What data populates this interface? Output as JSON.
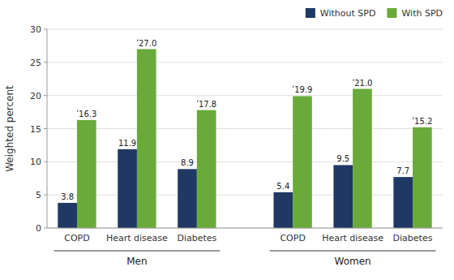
{
  "chart_data": {
    "type": "bar",
    "categories": [
      "COPD",
      "Heart disease",
      "Diabetes",
      "COPD",
      "Heart disease",
      "Diabetes"
    ],
    "group_labels": [
      "Men",
      "Women"
    ],
    "series": [
      {
        "name": "Without SPD",
        "color": "#1f3864",
        "values": [
          3.8,
          11.9,
          8.9,
          5.4,
          9.5,
          7.7
        ]
      },
      {
        "name": "With SPD",
        "color": "#6aaa3a",
        "values": [
          16.3,
          27.0,
          17.8,
          19.9,
          21.0,
          15.2
        ],
        "value_labels": [
          "ʹ16.3",
          "ʹ27.0",
          "ʹ17.8",
          "ʹ19.9",
          "ʹ21.0",
          "ʹ15.2"
        ]
      }
    ],
    "y_label": "Weighted percent",
    "ylim": [
      0,
      30
    ],
    "yticks": [
      0,
      5,
      10,
      15,
      20,
      25,
      30
    ],
    "grid": true,
    "legend": "upper right",
    "data_labels": true
  }
}
